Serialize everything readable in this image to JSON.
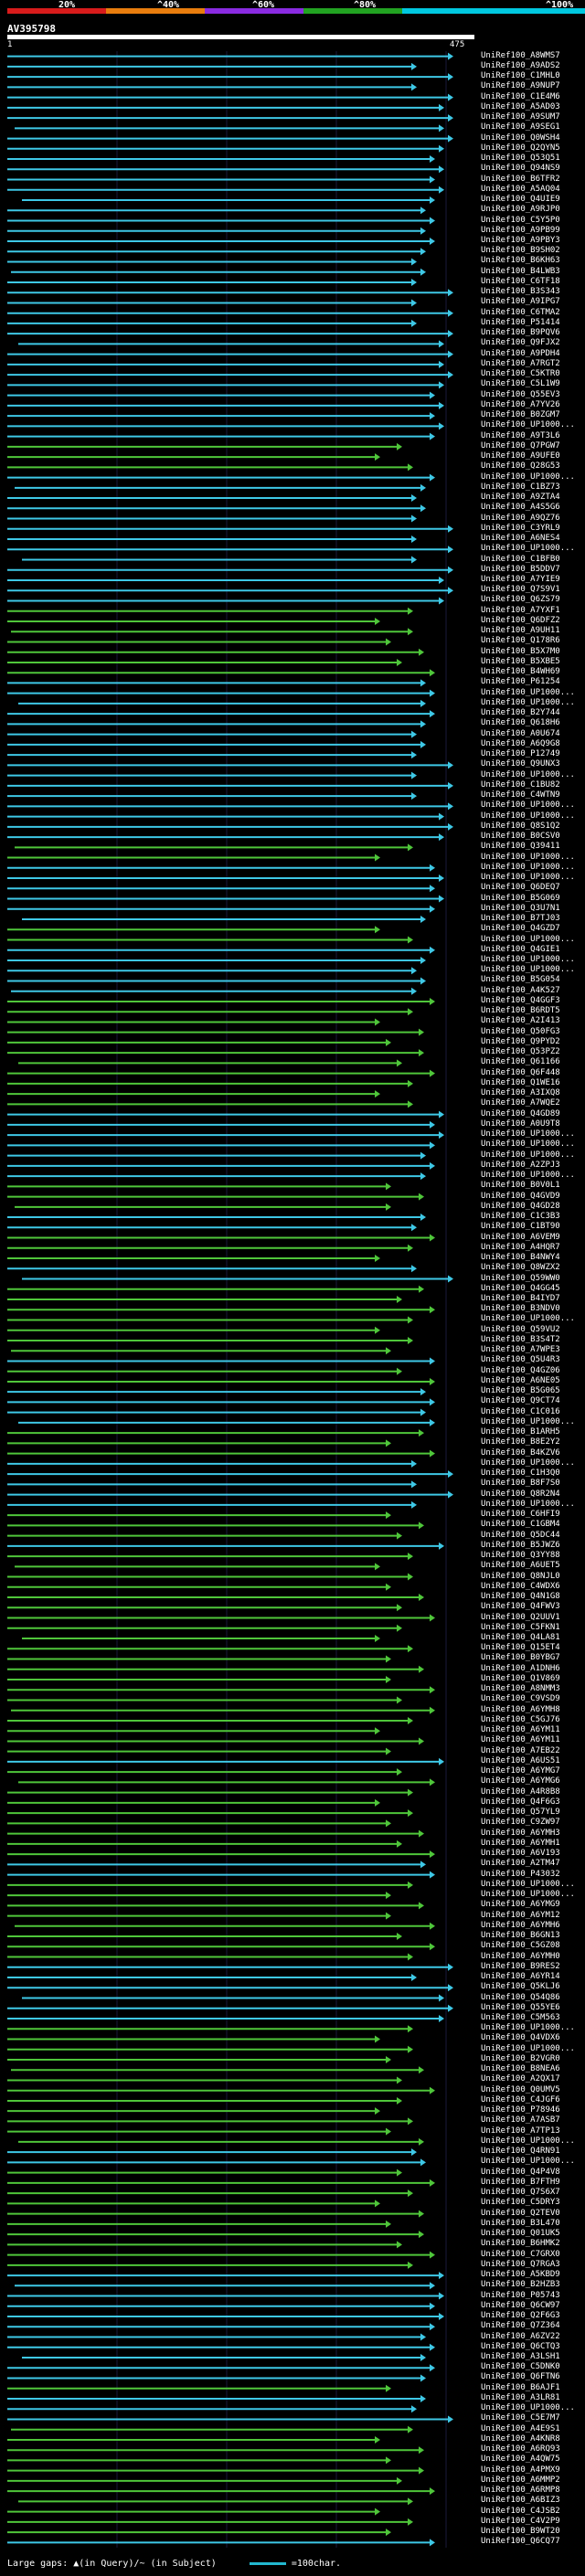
{
  "colors": {
    "identity_scale": [
      "#d81b1b",
      "#e87d0e",
      "#8a2be2",
      "#22a322",
      "#00c8e0"
    ],
    "cyan_hit": "#3ec8e6",
    "green_hit": "#4fc63a",
    "query_bar": "#ffffff"
  },
  "legend": {
    "labels": [
      "20%",
      "^40%",
      "^60%",
      "^80%",
      "^100%"
    ]
  },
  "query": {
    "title": "AV395798",
    "start": "1",
    "end": "475"
  },
  "hits": [
    {
      "label": "UniRef100_A8WMS7",
      "color": "cyan"
    },
    {
      "label": "UniRef100_A9ADS2",
      "color": "cyan"
    },
    {
      "label": "UniRef100_C1MHL0",
      "color": "cyan"
    },
    {
      "label": "UniRef100_A9NUP7",
      "color": "cyan"
    },
    {
      "label": "UniRef100_C1E4M6",
      "color": "cyan"
    },
    {
      "label": "UniRef100_A5AD03",
      "color": "cyan"
    },
    {
      "label": "UniRef100_A9SUM7",
      "color": "cyan"
    },
    {
      "label": "UniRef100_A9SEG1",
      "color": "cyan"
    },
    {
      "label": "UniRef100_Q0WSH4",
      "color": "cyan"
    },
    {
      "label": "UniRef100_Q2QYN5",
      "color": "cyan"
    },
    {
      "label": "UniRef100_Q53Q51",
      "color": "cyan"
    },
    {
      "label": "UniRef100_Q94NS9",
      "color": "cyan"
    },
    {
      "label": "UniRef100_B6TFR2",
      "color": "cyan"
    },
    {
      "label": "UniRef100_A5AQ04",
      "color": "cyan"
    },
    {
      "label": "UniRef100_Q4UIE9",
      "color": "cyan"
    },
    {
      "label": "UniRef100_A9RJP0",
      "color": "cyan"
    },
    {
      "label": "UniRef100_C5Y5P0",
      "color": "cyan"
    },
    {
      "label": "UniRef100_A9PB99",
      "color": "cyan"
    },
    {
      "label": "UniRef100_A9PBY3",
      "color": "cyan"
    },
    {
      "label": "UniRef100_B9SH02",
      "color": "cyan"
    },
    {
      "label": "UniRef100_B6KH63",
      "color": "cyan"
    },
    {
      "label": "UniRef100_B4LWB3",
      "color": "cyan"
    },
    {
      "label": "UniRef100_C6TF18",
      "color": "cyan"
    },
    {
      "label": "UniRef100_B3S343",
      "color": "cyan"
    },
    {
      "label": "UniRef100_A9IPG7",
      "color": "cyan"
    },
    {
      "label": "UniRef100_C6TMA2",
      "color": "cyan"
    },
    {
      "label": "UniRef100_P51414",
      "color": "cyan"
    },
    {
      "label": "UniRef100_B9PQV6",
      "color": "cyan"
    },
    {
      "label": "UniRef100_Q9FJX2",
      "color": "cyan"
    },
    {
      "label": "UniRef100_A9PDH4",
      "color": "cyan"
    },
    {
      "label": "UniRef100_A7RGT2",
      "color": "cyan"
    },
    {
      "label": "UniRef100_C5KTR0",
      "color": "cyan"
    },
    {
      "label": "UniRef100_C5L1W9",
      "color": "cyan"
    },
    {
      "label": "UniRef100_Q55EV3",
      "color": "cyan"
    },
    {
      "label": "UniRef100_A7YV26",
      "color": "cyan"
    },
    {
      "label": "UniRef100_B0ZGM7",
      "color": "cyan"
    },
    {
      "label": "UniRef100_UP1000...",
      "color": "cyan"
    },
    {
      "label": "UniRef100_A9T3L6",
      "color": "cyan"
    },
    {
      "label": "UniRef100_Q7PGW7",
      "color": "green"
    },
    {
      "label": "UniRef100_A9UFE0",
      "color": "green"
    },
    {
      "label": "UniRef100_Q28G53",
      "color": "green"
    },
    {
      "label": "UniRef100_UP1000...",
      "color": "cyan"
    },
    {
      "label": "UniRef100_C1BZ73",
      "color": "cyan"
    },
    {
      "label": "UniRef100_A9ZTA4",
      "color": "cyan"
    },
    {
      "label": "UniRef100_A4S5G6",
      "color": "cyan"
    },
    {
      "label": "UniRef100_A9QZ76",
      "color": "cyan"
    },
    {
      "label": "UniRef100_C3YRL9",
      "color": "cyan"
    },
    {
      "label": "UniRef100_A6NES4",
      "color": "cyan"
    },
    {
      "label": "UniRef100_UP1000...",
      "color": "cyan"
    },
    {
      "label": "UniRef100_C1BFB0",
      "color": "cyan"
    },
    {
      "label": "UniRef100_B5DDV7",
      "color": "cyan"
    },
    {
      "label": "UniRef100_A7YIE9",
      "color": "cyan"
    },
    {
      "label": "UniRef100_Q7S9V1",
      "color": "cyan"
    },
    {
      "label": "UniRef100_Q6ZS79",
      "color": "cyan"
    },
    {
      "label": "UniRef100_A7YXF1",
      "color": "green"
    },
    {
      "label": "UniRef100_Q6DFZ2",
      "color": "green"
    },
    {
      "label": "UniRef100_A9UH11",
      "color": "green"
    },
    {
      "label": "UniRef100_Q178R6",
      "color": "green"
    },
    {
      "label": "UniRef100_B5X7M0",
      "color": "green"
    },
    {
      "label": "UniRef100_B5XBE5",
      "color": "green"
    },
    {
      "label": "UniRef100_B4WH69",
      "color": "green"
    },
    {
      "label": "UniRef100_P61254",
      "color": "cyan"
    },
    {
      "label": "UniRef100_UP1000...",
      "color": "cyan"
    },
    {
      "label": "UniRef100_UP1000...",
      "color": "cyan"
    },
    {
      "label": "UniRef100_B2Y744",
      "color": "cyan"
    },
    {
      "label": "UniRef100_Q618H6",
      "color": "cyan"
    },
    {
      "label": "UniRef100_A0U674",
      "color": "cyan"
    },
    {
      "label": "UniRef100_A6Q9G8",
      "color": "cyan"
    },
    {
      "label": "UniRef100_P12749",
      "color": "cyan"
    },
    {
      "label": "UniRef100_Q9UNX3",
      "color": "cyan"
    },
    {
      "label": "UniRef100_UP1000...",
      "color": "cyan"
    },
    {
      "label": "UniRef100_C1BU82",
      "color": "cyan"
    },
    {
      "label": "UniRef100_C4WTN9",
      "color": "cyan"
    },
    {
      "label": "UniRef100_UP1000...",
      "color": "cyan"
    },
    {
      "label": "UniRef100_UP1000...",
      "color": "cyan"
    },
    {
      "label": "UniRef100_Q8S1Q2",
      "color": "cyan"
    },
    {
      "label": "UniRef100_B0CSV0",
      "color": "cyan"
    },
    {
      "label": "UniRef100_Q39411",
      "color": "green"
    },
    {
      "label": "UniRef100_UP1000...",
      "color": "green"
    },
    {
      "label": "UniRef100_UP1000...",
      "color": "cyan"
    },
    {
      "label": "UniRef100_UP1000...",
      "color": "cyan"
    },
    {
      "label": "UniRef100_Q6DEQ7",
      "color": "cyan"
    },
    {
      "label": "UniRef100_B5G069",
      "color": "cyan"
    },
    {
      "label": "UniRef100_Q3U7N1",
      "color": "cyan"
    },
    {
      "label": "UniRef100_B7TJ03",
      "color": "cyan"
    },
    {
      "label": "UniRef100_Q4GZD7",
      "color": "green"
    },
    {
      "label": "UniRef100_UP1000...",
      "color": "green"
    },
    {
      "label": "UniRef100_Q4GIE1",
      "color": "cyan"
    },
    {
      "label": "UniRef100_UP1000...",
      "color": "cyan"
    },
    {
      "label": "UniRef100_UP1000...",
      "color": "cyan"
    },
    {
      "label": "UniRef100_B5G054",
      "color": "cyan"
    },
    {
      "label": "UniRef100_A4K527",
      "color": "cyan"
    },
    {
      "label": "UniRef100_Q4GGF3",
      "color": "green"
    },
    {
      "label": "UniRef100_B6RDT5",
      "color": "green"
    },
    {
      "label": "UniRef100_A2I413",
      "color": "green"
    },
    {
      "label": "UniRef100_Q50FG3",
      "color": "green"
    },
    {
      "label": "UniRef100_Q9PYD2",
      "color": "green"
    },
    {
      "label": "UniRef100_Q53PZ2",
      "color": "green"
    },
    {
      "label": "UniRef100_Q61166",
      "color": "green"
    },
    {
      "label": "UniRef100_Q6F448",
      "color": "green"
    },
    {
      "label": "UniRef100_Q1WE16",
      "color": "green"
    },
    {
      "label": "UniRef100_A3IXQ8",
      "color": "green"
    },
    {
      "label": "UniRef100_A7WQE2",
      "color": "green"
    },
    {
      "label": "UniRef100_Q4GD89",
      "color": "cyan"
    },
    {
      "label": "UniRef100_A0U9T8",
      "color": "cyan"
    },
    {
      "label": "UniRef100_UP1000...",
      "color": "cyan"
    },
    {
      "label": "UniRef100_UP1000...",
      "color": "cyan"
    },
    {
      "label": "UniRef100_UP1000...",
      "color": "cyan"
    },
    {
      "label": "UniRef100_A2ZPJ3",
      "color": "cyan"
    },
    {
      "label": "UniRef100_UP1000...",
      "color": "cyan"
    },
    {
      "label": "UniRef100_B0V0L1",
      "color": "green"
    },
    {
      "label": "UniRef100_Q4GVD9",
      "color": "green"
    },
    {
      "label": "UniRef100_Q4GD28",
      "color": "green"
    },
    {
      "label": "UniRef100_C1C3B3",
      "color": "cyan"
    },
    {
      "label": "UniRef100_C1BT90",
      "color": "cyan"
    },
    {
      "label": "UniRef100_A6VEM9",
      "color": "green"
    },
    {
      "label": "UniRef100_A4HQR7",
      "color": "green"
    },
    {
      "label": "UniRef100_B4NWY4",
      "color": "green"
    },
    {
      "label": "UniRef100_Q8WZX2",
      "color": "cyan"
    },
    {
      "label": "UniRef100_Q59WW0",
      "color": "cyan"
    },
    {
      "label": "UniRef100_Q4GG45",
      "color": "green"
    },
    {
      "label": "UniRef100_B4IYD7",
      "color": "green"
    },
    {
      "label": "UniRef100_B3NDV0",
      "color": "green"
    },
    {
      "label": "UniRef100_UP1000...",
      "color": "green"
    },
    {
      "label": "UniRef100_Q59VU2",
      "color": "green"
    },
    {
      "label": "UniRef100_B3S4T2",
      "color": "green"
    },
    {
      "label": "UniRef100_A7WPE3",
      "color": "green"
    },
    {
      "label": "UniRef100_Q5U4R3",
      "color": "cyan"
    },
    {
      "label": "UniRef100_Q4GZ06",
      "color": "green"
    },
    {
      "label": "UniRef100_A6NE05",
      "color": "green"
    },
    {
      "label": "UniRef100_B5G065",
      "color": "cyan"
    },
    {
      "label": "UniRef100_Q9CT74",
      "color": "cyan"
    },
    {
      "label": "UniRef100_C1C016",
      "color": "cyan"
    },
    {
      "label": "UniRef100_UP1000...",
      "color": "cyan"
    },
    {
      "label": "UniRef100_B1ARH5",
      "color": "green"
    },
    {
      "label": "UniRef100_B8E2Y2",
      "color": "green"
    },
    {
      "label": "UniRef100_B4KZV6",
      "color": "green"
    },
    {
      "label": "UniRef100_UP1000...",
      "color": "cyan"
    },
    {
      "label": "UniRef100_C1H3Q0",
      "color": "cyan"
    },
    {
      "label": "UniRef100_B8F7S0",
      "color": "cyan"
    },
    {
      "label": "UniRef100_Q8R2N4",
      "color": "cyan"
    },
    {
      "label": "UniRef100_UP1000...",
      "color": "cyan"
    },
    {
      "label": "UniRef100_C6HFI9",
      "color": "green"
    },
    {
      "label": "UniRef100_C1GBM4",
      "color": "green"
    },
    {
      "label": "UniRef100_Q5DC44",
      "color": "green"
    },
    {
      "label": "UniRef100_B5JWZ6",
      "color": "cyan"
    },
    {
      "label": "UniRef100_Q3YY88",
      "color": "green"
    },
    {
      "label": "UniRef100_A6UET5",
      "color": "green"
    },
    {
      "label": "UniRef100_Q8NJL0",
      "color": "green"
    },
    {
      "label": "UniRef100_C4WDX6",
      "color": "green"
    },
    {
      "label": "UniRef100_Q4N1G8",
      "color": "green"
    },
    {
      "label": "UniRef100_Q4FWV3",
      "color": "green"
    },
    {
      "label": "UniRef100_Q2UUV1",
      "color": "green"
    },
    {
      "label": "UniRef100_C5FKN1",
      "color": "green"
    },
    {
      "label": "UniRef100_Q4LA81",
      "color": "green"
    },
    {
      "label": "UniRef100_Q15ET4",
      "color": "green"
    },
    {
      "label": "UniRef100_B0YBG7",
      "color": "green"
    },
    {
      "label": "UniRef100_A1DNH6",
      "color": "green"
    },
    {
      "label": "UniRef100_Q1V869",
      "color": "green"
    },
    {
      "label": "UniRef100_A8NMM3",
      "color": "green"
    },
    {
      "label": "UniRef100_C9VSD9",
      "color": "green"
    },
    {
      "label": "UniRef100_A6YMH8",
      "color": "green"
    },
    {
      "label": "UniRef100_C5GJ76",
      "color": "green"
    },
    {
      "label": "UniRef100_A6YM11",
      "color": "green"
    },
    {
      "label": "UniRef100_A6YM11",
      "color": "green"
    },
    {
      "label": "UniRef100_A7EB22",
      "color": "green"
    },
    {
      "label": "UniRef100_A6US51",
      "color": "cyan"
    },
    {
      "label": "UniRef100_A6YMG7",
      "color": "green"
    },
    {
      "label": "UniRef100_A6YMG6",
      "color": "green"
    },
    {
      "label": "UniRef100_A4R8B8",
      "color": "green"
    },
    {
      "label": "UniRef100_Q4F6G3",
      "color": "green"
    },
    {
      "label": "UniRef100_Q57YL9",
      "color": "green"
    },
    {
      "label": "UniRef100_C9ZW97",
      "color": "green"
    },
    {
      "label": "UniRef100_A6YMH3",
      "color": "green"
    },
    {
      "label": "UniRef100_A6YMH1",
      "color": "green"
    },
    {
      "label": "UniRef100_A6V193",
      "color": "green"
    },
    {
      "label": "UniRef100_A2TM47",
      "color": "cyan"
    },
    {
      "label": "UniRef100_P43032",
      "color": "cyan"
    },
    {
      "label": "UniRef100_UP1000...",
      "color": "green"
    },
    {
      "label": "UniRef100_UP1000...",
      "color": "green"
    },
    {
      "label": "UniRef100_A6YMG9",
      "color": "green"
    },
    {
      "label": "UniRef100_A6YM12",
      "color": "green"
    },
    {
      "label": "UniRef100_A6YMH6",
      "color": "green"
    },
    {
      "label": "UniRef100_B6GN13",
      "color": "green"
    },
    {
      "label": "UniRef100_C5GZ08",
      "color": "green"
    },
    {
      "label": "UniRef100_A6YMH0",
      "color": "green"
    },
    {
      "label": "UniRef100_B9RES2",
      "color": "cyan"
    },
    {
      "label": "UniRef100_A6YR14",
      "color": "cyan"
    },
    {
      "label": "UniRef100_Q5KLJ6",
      "color": "cyan"
    },
    {
      "label": "UniRef100_Q54Q86",
      "color": "cyan"
    },
    {
      "label": "UniRef100_Q55YE6",
      "color": "cyan"
    },
    {
      "label": "UniRef100_C5M563",
      "color": "cyan"
    },
    {
      "label": "UniRef100_UP1000...",
      "color": "green"
    },
    {
      "label": "UniRef100_Q4VDX6",
      "color": "green"
    },
    {
      "label": "UniRef100_UP1000...",
      "color": "green"
    },
    {
      "label": "UniRef100_B2VGR0",
      "color": "green"
    },
    {
      "label": "UniRef100_B8NEA6",
      "color": "green"
    },
    {
      "label": "UniRef100_A2QX17",
      "color": "green"
    },
    {
      "label": "UniRef100_Q0UMV5",
      "color": "green"
    },
    {
      "label": "UniRef100_C4JGF6",
      "color": "green"
    },
    {
      "label": "UniRef100_P78946",
      "color": "green"
    },
    {
      "label": "UniRef100_A7ASB7",
      "color": "green"
    },
    {
      "label": "UniRef100_A7TP13",
      "color": "green"
    },
    {
      "label": "UniRef100_UP1000...",
      "color": "green"
    },
    {
      "label": "UniRef100_Q4RN91",
      "color": "cyan"
    },
    {
      "label": "UniRef100_UP1000...",
      "color": "cyan"
    },
    {
      "label": "UniRef100_Q4P4V8",
      "color": "green"
    },
    {
      "label": "UniRef100_B7FTH9",
      "color": "green"
    },
    {
      "label": "UniRef100_Q7S6X7",
      "color": "green"
    },
    {
      "label": "UniRef100_C5DRY3",
      "color": "green"
    },
    {
      "label": "UniRef100_Q2TEV0",
      "color": "green"
    },
    {
      "label": "UniRef100_B3L470",
      "color": "green"
    },
    {
      "label": "UniRef100_Q01UK5",
      "color": "green"
    },
    {
      "label": "UniRef100_B6HMK2",
      "color": "green"
    },
    {
      "label": "UniRef100_C7GRX0",
      "color": "green"
    },
    {
      "label": "UniRef100_Q7RGA3",
      "color": "green"
    },
    {
      "label": "UniRef100_A5KBD9",
      "color": "cyan"
    },
    {
      "label": "UniRef100_B2HZB3",
      "color": "cyan"
    },
    {
      "label": "UniRef100_P05743",
      "color": "cyan"
    },
    {
      "label": "UniRef100_Q6CW97",
      "color": "cyan"
    },
    {
      "label": "UniRef100_Q2F6G3",
      "color": "cyan"
    },
    {
      "label": "UniRef100_Q7Z364",
      "color": "cyan"
    },
    {
      "label": "UniRef100_A6ZV22",
      "color": "cyan"
    },
    {
      "label": "UniRef100_Q6CTQ3",
      "color": "cyan"
    },
    {
      "label": "UniRef100_A3LSH1",
      "color": "cyan"
    },
    {
      "label": "UniRef100_C5DNK0",
      "color": "cyan"
    },
    {
      "label": "UniRef100_Q6FTN6",
      "color": "cyan"
    },
    {
      "label": "UniRef100_B6AJF1",
      "color": "green"
    },
    {
      "label": "UniRef100_A3LR81",
      "color": "cyan"
    },
    {
      "label": "UniRef100_UP1000...",
      "color": "cyan"
    },
    {
      "label": "UniRef100_C5E7M7",
      "color": "cyan"
    },
    {
      "label": "UniRef100_A4E9S1",
      "color": "green"
    },
    {
      "label": "UniRef100_A4KNR8",
      "color": "green"
    },
    {
      "label": "UniRef100_A6RQ93",
      "color": "green"
    },
    {
      "label": "UniRef100_A4QW75",
      "color": "green"
    },
    {
      "label": "UniRef100_A4PMX9",
      "color": "green"
    },
    {
      "label": "UniRef100_A6MMP2",
      "color": "green"
    },
    {
      "label": "UniRef100_A6RMP8",
      "color": "green"
    },
    {
      "label": "UniRef100_A6BIZ3",
      "color": "green"
    },
    {
      "label": "UniRef100_C4JSB2",
      "color": "green"
    },
    {
      "label": "UniRef100_C4V2P9",
      "color": "green"
    },
    {
      "label": "UniRef100_B9WT20",
      "color": "green"
    },
    {
      "label": "UniRef100_Q6CQ77",
      "color": "cyan"
    }
  ],
  "footer": {
    "text": "Large gaps: ▲(in Query)/~ (in Subject)",
    "scale_label": "=100char."
  }
}
